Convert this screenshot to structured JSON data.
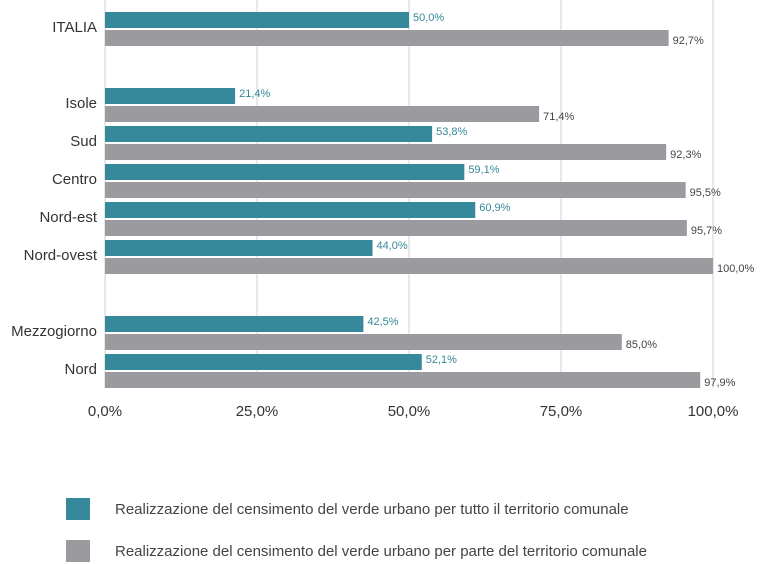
{
  "chart_data": {
    "type": "hbar",
    "categories": [
      "ITALIA",
      null,
      "Isole",
      "Sud",
      "Centro",
      "Nord-est",
      "Nord-ovest",
      null,
      "Mezzogiorno",
      "Nord"
    ],
    "series": [
      {
        "name": "Realizzazione del censimento del verde urbano per tutto il territorio comunale",
        "color": "#35899a",
        "values": [
          50.0,
          null,
          21.4,
          53.8,
          59.1,
          60.9,
          44.0,
          null,
          42.5,
          52.1
        ],
        "value_labels": [
          "50,0%",
          null,
          "21,4%",
          "53,8%",
          "59,1%",
          "60,9%",
          "44,0%",
          null,
          "42,5%",
          "52,1%"
        ]
      },
      {
        "name": "Realizzazione del censimento del verde urbano per parte del territorio comunale",
        "color": "#9b9b9f",
        "values": [
          92.7,
          null,
          71.4,
          92.3,
          95.5,
          95.7,
          100.0,
          null,
          85.0,
          97.9
        ],
        "value_labels": [
          "92,7%",
          null,
          "71,4%",
          "92,3%",
          "95,5%",
          "95,7%",
          "100,0%",
          null,
          "85,0%",
          "97,9%"
        ]
      }
    ],
    "xlim": [
      0,
      100
    ],
    "xticks": [
      {
        "value": 0,
        "label": "0,0%"
      },
      {
        "value": 25,
        "label": "25,0%"
      },
      {
        "value": 50,
        "label": "50,0%"
      },
      {
        "value": 75,
        "label": "75,0%"
      },
      {
        "value": 100,
        "label": "100,0%"
      }
    ],
    "grid": true,
    "legend": "bottom"
  }
}
